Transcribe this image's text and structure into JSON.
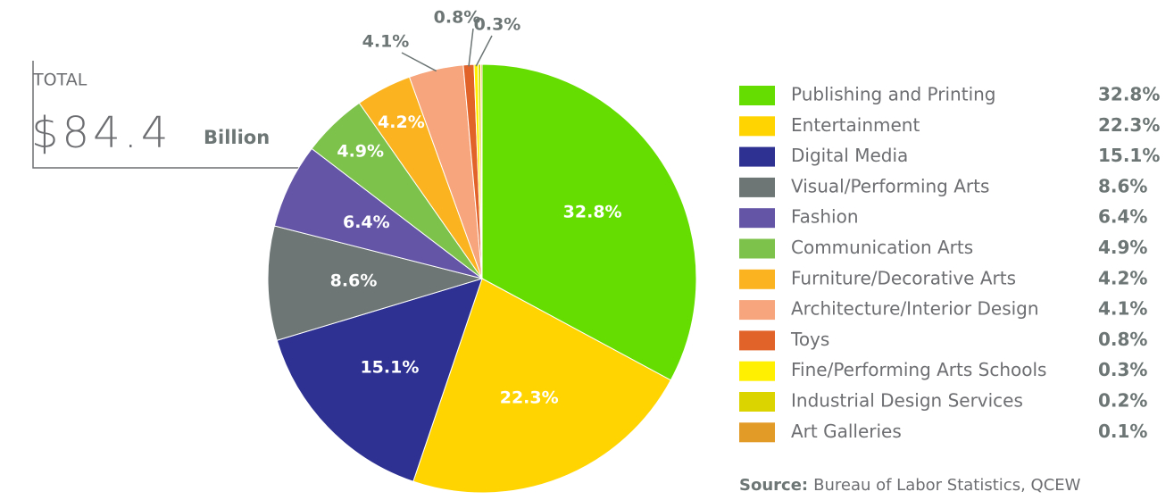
{
  "chart_data": {
    "type": "pie",
    "annotation": {
      "total_label": "TOTAL",
      "total_value": "$84.4",
      "total_unit": "Billion"
    },
    "categories": [
      "Publishing and Printing",
      "Entertainment",
      "Digital Media",
      "Visual/Performing Arts",
      "Fashion",
      "Communication Arts",
      "Furniture/Decorative Arts",
      "Architecture/Interior Design",
      "Toys",
      "Fine/Performing Arts Schools",
      "Industrial Design Services",
      "Art Galleries"
    ],
    "values": [
      32.8,
      22.3,
      15.1,
      8.6,
      6.4,
      4.9,
      4.2,
      4.1,
      0.8,
      0.3,
      0.2,
      0.1
    ],
    "value_labels": [
      "32.8%",
      "22.3%",
      "15.1%",
      "8.6%",
      "6.4%",
      "4.9%",
      "4.2%",
      "4.1%",
      "0.8%",
      "0.3%",
      "0.2%",
      "0.1%"
    ],
    "colors": [
      "#66dd00",
      "#ffd400",
      "#2e3192",
      "#6d7575",
      "#6455a6",
      "#7dc24b",
      "#fbb41f",
      "#f6a57c",
      "#e2632a",
      "#ffef00",
      "#dcd400",
      "#e39b28"
    ],
    "source": {
      "label": "Source:",
      "text": "Bureau of Labor Statistics, QCEW"
    }
  }
}
